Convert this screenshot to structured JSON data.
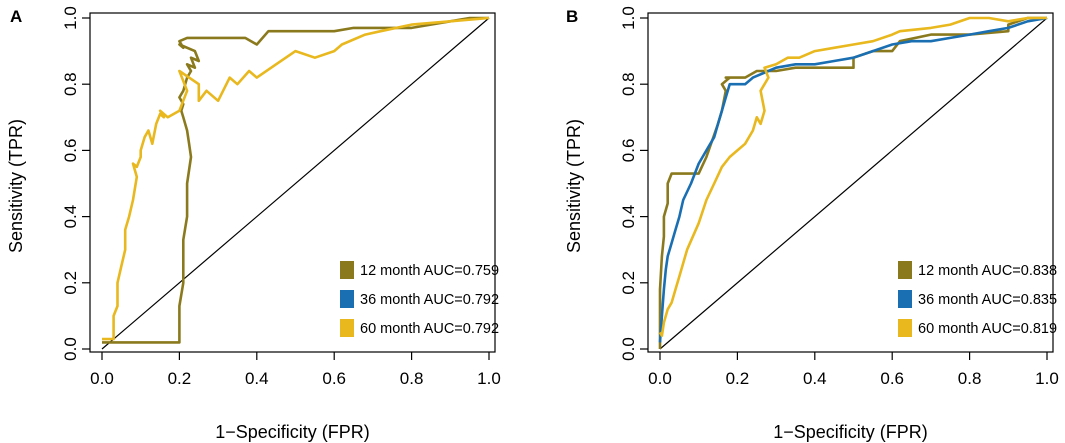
{
  "chart_data": [
    {
      "panel_label": "A",
      "type": "line",
      "title": "",
      "xlabel": "1−Specificity (FPR)",
      "ylabel": "Sensitivity (TPR)",
      "xlim": [
        0,
        1
      ],
      "ylim": [
        0,
        1
      ],
      "xticks": [
        0.0,
        0.2,
        0.4,
        0.6,
        0.8,
        1.0
      ],
      "xtick_labels": [
        "0.0",
        "0.2",
        "0.4",
        "0.6",
        "0.8",
        "1.0"
      ],
      "yticks": [
        0.0,
        0.2,
        0.4,
        0.6,
        0.8,
        1.0
      ],
      "ytick_labels": [
        "0.0",
        "0.2",
        "0.4",
        "0.6",
        "0.8",
        "1.0"
      ],
      "grid": false,
      "legend_position": "bottom-right",
      "diagonal_reference": true,
      "series": [
        {
          "name": "12 month AUC=0.759",
          "color": "#8b7a1d",
          "x": [
            0.0,
            0.0,
            0.2,
            0.2,
            0.21,
            0.21,
            0.22,
            0.22,
            0.23,
            0.225,
            0.22,
            0.21,
            0.205,
            0.21,
            0.2,
            0.21,
            0.215,
            0.22,
            0.23,
            0.22,
            0.24,
            0.23,
            0.25,
            0.24,
            0.2,
            0.21,
            0.2,
            0.22,
            0.25,
            0.3,
            0.34,
            0.37,
            0.4,
            0.43,
            0.47,
            0.5,
            0.55,
            0.6,
            0.65,
            0.7,
            0.75,
            0.8,
            0.85,
            0.9,
            0.95,
            1.0
          ],
          "y": [
            0.02,
            0.02,
            0.02,
            0.13,
            0.2,
            0.33,
            0.4,
            0.5,
            0.58,
            0.62,
            0.66,
            0.7,
            0.72,
            0.74,
            0.76,
            0.78,
            0.8,
            0.82,
            0.84,
            0.86,
            0.85,
            0.88,
            0.87,
            0.9,
            0.92,
            0.91,
            0.93,
            0.94,
            0.94,
            0.94,
            0.94,
            0.94,
            0.92,
            0.96,
            0.96,
            0.96,
            0.96,
            0.96,
            0.97,
            0.97,
            0.97,
            0.97,
            0.98,
            0.99,
            1.0,
            1.0
          ]
        },
        {
          "name": "36 month AUC=0.792",
          "color": "#1a6fb3",
          "x": [],
          "y": []
        },
        {
          "name": "60 month AUC=0.792",
          "color": "#e8b81e",
          "x": [
            0.0,
            0.03,
            0.03,
            0.04,
            0.04,
            0.05,
            0.06,
            0.06,
            0.07,
            0.08,
            0.09,
            0.08,
            0.09,
            0.1,
            0.1,
            0.11,
            0.12,
            0.13,
            0.14,
            0.15,
            0.16,
            0.15,
            0.17,
            0.2,
            0.22,
            0.2,
            0.25,
            0.25,
            0.27,
            0.3,
            0.33,
            0.35,
            0.38,
            0.4,
            0.45,
            0.5,
            0.55,
            0.6,
            0.62,
            0.68,
            0.72,
            0.8,
            0.9,
            1.0
          ],
          "y": [
            0.03,
            0.03,
            0.1,
            0.13,
            0.2,
            0.25,
            0.3,
            0.36,
            0.4,
            0.45,
            0.52,
            0.56,
            0.55,
            0.58,
            0.6,
            0.64,
            0.66,
            0.62,
            0.68,
            0.71,
            0.7,
            0.72,
            0.7,
            0.72,
            0.78,
            0.84,
            0.8,
            0.75,
            0.78,
            0.75,
            0.82,
            0.8,
            0.84,
            0.82,
            0.86,
            0.9,
            0.88,
            0.9,
            0.92,
            0.95,
            0.96,
            0.98,
            0.99,
            1.0
          ]
        }
      ]
    },
    {
      "panel_label": "B",
      "type": "line",
      "title": "",
      "xlabel": "1−Specificity (FPR)",
      "ylabel": "Sensitivity (TPR)",
      "xlim": [
        0,
        1
      ],
      "ylim": [
        0,
        1
      ],
      "xticks": [
        0.0,
        0.2,
        0.4,
        0.6,
        0.8,
        1.0
      ],
      "xtick_labels": [
        "0.0",
        "0.2",
        "0.4",
        "0.6",
        "0.8",
        "1.0"
      ],
      "yticks": [
        0.0,
        0.2,
        0.4,
        0.6,
        0.8,
        1.0
      ],
      "ytick_labels": [
        "0.0",
        "0.2",
        "0.4",
        "0.6",
        "0.8",
        "1.0"
      ],
      "grid": false,
      "legend_position": "bottom-right",
      "diagonal_reference": true,
      "series": [
        {
          "name": "12 month AUC=0.838",
          "color": "#8b7a1d",
          "x": [
            0.0,
            0.0,
            0.005,
            0.01,
            0.01,
            0.02,
            0.02,
            0.03,
            0.05,
            0.1,
            0.12,
            0.15,
            0.16,
            0.17,
            0.16,
            0.18,
            0.17,
            0.2,
            0.22,
            0.25,
            0.28,
            0.3,
            0.35,
            0.4,
            0.45,
            0.5,
            0.5,
            0.55,
            0.6,
            0.62,
            0.7,
            0.8,
            0.9,
            0.9,
            0.95,
            1.0
          ],
          "y": [
            0.0,
            0.18,
            0.28,
            0.34,
            0.4,
            0.44,
            0.5,
            0.53,
            0.53,
            0.53,
            0.58,
            0.68,
            0.72,
            0.78,
            0.8,
            0.82,
            0.82,
            0.82,
            0.82,
            0.84,
            0.84,
            0.84,
            0.85,
            0.85,
            0.85,
            0.85,
            0.88,
            0.9,
            0.9,
            0.93,
            0.95,
            0.95,
            0.96,
            0.98,
            1.0,
            1.0
          ]
        },
        {
          "name": "36 month AUC=0.835",
          "color": "#1a6fb3",
          "x": [
            0.0,
            0.005,
            0.01,
            0.015,
            0.02,
            0.03,
            0.04,
            0.05,
            0.06,
            0.08,
            0.1,
            0.12,
            0.14,
            0.15,
            0.16,
            0.17,
            0.18,
            0.2,
            0.22,
            0.24,
            0.26,
            0.28,
            0.3,
            0.35,
            0.4,
            0.45,
            0.5,
            0.55,
            0.6,
            0.65,
            0.7,
            0.75,
            0.8,
            0.85,
            0.9,
            0.95,
            1.0
          ],
          "y": [
            0.02,
            0.1,
            0.18,
            0.24,
            0.28,
            0.32,
            0.36,
            0.4,
            0.45,
            0.5,
            0.56,
            0.6,
            0.64,
            0.68,
            0.72,
            0.76,
            0.8,
            0.8,
            0.8,
            0.82,
            0.83,
            0.84,
            0.85,
            0.86,
            0.86,
            0.87,
            0.88,
            0.9,
            0.92,
            0.93,
            0.93,
            0.94,
            0.95,
            0.96,
            0.97,
            0.99,
            1.0
          ]
        },
        {
          "name": "60 month AUC=0.819",
          "color": "#e8b81e",
          "x": [
            0.0,
            0.005,
            0.01,
            0.02,
            0.03,
            0.04,
            0.05,
            0.07,
            0.1,
            0.12,
            0.14,
            0.16,
            0.18,
            0.2,
            0.22,
            0.24,
            0.25,
            0.26,
            0.27,
            0.26,
            0.28,
            0.27,
            0.3,
            0.33,
            0.36,
            0.4,
            0.45,
            0.5,
            0.55,
            0.6,
            0.62,
            0.7,
            0.75,
            0.8,
            0.85,
            0.9,
            0.95,
            1.0
          ],
          "y": [
            0.05,
            0.04,
            0.08,
            0.12,
            0.14,
            0.18,
            0.22,
            0.3,
            0.38,
            0.45,
            0.5,
            0.55,
            0.58,
            0.6,
            0.62,
            0.66,
            0.7,
            0.68,
            0.72,
            0.78,
            0.82,
            0.85,
            0.86,
            0.88,
            0.88,
            0.9,
            0.91,
            0.92,
            0.93,
            0.95,
            0.96,
            0.97,
            0.98,
            1.0,
            1.0,
            0.99,
            1.0,
            1.0
          ]
        }
      ]
    }
  ]
}
